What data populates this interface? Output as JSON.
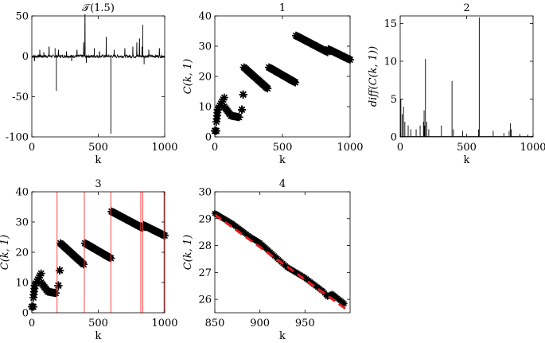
{
  "chart_data": [
    {
      "type": "line",
      "title": "𝒯(1.5)",
      "xlabel": "k",
      "ylabel": "",
      "xlim": [
        0,
        1000
      ],
      "ylim": [
        -100,
        50
      ],
      "xticks": [
        0,
        500,
        1000
      ],
      "yticks": [
        -100,
        -50,
        0,
        50
      ],
      "series": [
        {
          "baseline": 0,
          "noise_amplitude": 2,
          "spikes": [
            {
              "x": 20,
              "y": -6
            },
            {
              "x": 60,
              "y": 8
            },
            {
              "x": 90,
              "y": 5
            },
            {
              "x": 130,
              "y": 12
            },
            {
              "x": 175,
              "y": 10
            },
            {
              "x": 185,
              "y": -43
            },
            {
              "x": 200,
              "y": 8
            },
            {
              "x": 260,
              "y": 6
            },
            {
              "x": 300,
              "y": -6
            },
            {
              "x": 340,
              "y": 8
            },
            {
              "x": 390,
              "y": 17
            },
            {
              "x": 400,
              "y": 52
            },
            {
              "x": 410,
              "y": -8
            },
            {
              "x": 470,
              "y": 10
            },
            {
              "x": 510,
              "y": 6
            },
            {
              "x": 560,
              "y": 24
            },
            {
              "x": 595,
              "y": -96
            },
            {
              "x": 620,
              "y": 8
            },
            {
              "x": 700,
              "y": 10
            },
            {
              "x": 760,
              "y": 12
            },
            {
              "x": 790,
              "y": 17
            },
            {
              "x": 810,
              "y": 22
            },
            {
              "x": 830,
              "y": 12
            },
            {
              "x": 835,
              "y": 39
            },
            {
              "x": 845,
              "y": -10
            },
            {
              "x": 880,
              "y": 8
            },
            {
              "x": 960,
              "y": 10
            }
          ]
        }
      ]
    },
    {
      "type": "scatter",
      "title": "1",
      "xlabel": "k",
      "ylabel": "C(k, 1)",
      "xlim": [
        0,
        1000
      ],
      "ylim": [
        0,
        40
      ],
      "xticks": [
        0,
        500,
        1000
      ],
      "yticks": [
        0,
        10,
        20,
        30,
        40
      ],
      "marker": "*",
      "segments": [
        {
          "x": [
            0,
            12
          ],
          "y": [
            2,
            2
          ]
        },
        {
          "x": [
            12,
            22
          ],
          "y": [
            5,
            9
          ]
        },
        {
          "x": [
            22,
            70
          ],
          "y": [
            9,
            13
          ]
        },
        {
          "x": [
            70,
            120
          ],
          "y": [
            10,
            7
          ]
        },
        {
          "x": [
            120,
            180
          ],
          "y": [
            7,
            6.5
          ]
        },
        {
          "x": [
            200,
            200
          ],
          "y": [
            9,
            9
          ]
        },
        {
          "x": [
            210,
            210
          ],
          "y": [
            14,
            14
          ]
        },
        {
          "x": [
            215,
            390
          ],
          "y": [
            23,
            16
          ]
        },
        {
          "x": [
            400,
            595
          ],
          "y": [
            23,
            18
          ]
        },
        {
          "x": [
            600,
            835
          ],
          "y": [
            33.5,
            28
          ]
        },
        {
          "x": [
            840,
            1000
          ],
          "y": [
            29,
            25.5
          ]
        }
      ]
    },
    {
      "type": "line",
      "title": "2",
      "xlabel": "k",
      "ylabel": "diff(C(k, 1))",
      "xlim": [
        0,
        1000
      ],
      "ylim": [
        0,
        16
      ],
      "xticks": [
        0,
        500,
        1000
      ],
      "yticks": [
        0,
        5,
        10,
        15
      ],
      "spikes": [
        {
          "x": 5,
          "y": 5
        },
        {
          "x": 15,
          "y": 3
        },
        {
          "x": 25,
          "y": 4
        },
        {
          "x": 35,
          "y": 2
        },
        {
          "x": 60,
          "y": 1.5
        },
        {
          "x": 80,
          "y": 1
        },
        {
          "x": 120,
          "y": 1
        },
        {
          "x": 150,
          "y": 1.5
        },
        {
          "x": 175,
          "y": 2
        },
        {
          "x": 180,
          "y": 3.5
        },
        {
          "x": 185,
          "y": 1.5
        },
        {
          "x": 190,
          "y": 10.3
        },
        {
          "x": 200,
          "y": 2
        },
        {
          "x": 215,
          "y": 1
        },
        {
          "x": 310,
          "y": 1.5
        },
        {
          "x": 390,
          "y": 7.4
        },
        {
          "x": 400,
          "y": 1
        },
        {
          "x": 470,
          "y": 0.8
        },
        {
          "x": 590,
          "y": 1
        },
        {
          "x": 595,
          "y": 15.8
        },
        {
          "x": 700,
          "y": 0.8
        },
        {
          "x": 780,
          "y": 0.5
        },
        {
          "x": 820,
          "y": 0.8
        },
        {
          "x": 830,
          "y": 1.8
        },
        {
          "x": 835,
          "y": 1
        },
        {
          "x": 900,
          "y": 0.4
        },
        {
          "x": 960,
          "y": 0.3
        }
      ]
    },
    {
      "type": "scatter",
      "title": "3",
      "xlabel": "k",
      "ylabel": "C(k, 1)",
      "xlim": [
        0,
        1000
      ],
      "ylim": [
        0,
        40
      ],
      "xticks": [
        0,
        500,
        1000
      ],
      "yticks": [
        0,
        10,
        20,
        30,
        40
      ],
      "marker": "*",
      "vlines": [
        190,
        395,
        595,
        820,
        835,
        995
      ],
      "vline_color": "#ff4444"
    },
    {
      "type": "line",
      "title": "4",
      "xlabel": "k",
      "ylabel": "C(k, 1)",
      "xlim": [
        850,
        1000
      ],
      "ylim": [
        25.5,
        30
      ],
      "xticks": [
        850,
        900,
        950
      ],
      "yticks": [
        26,
        27,
        28,
        29,
        30
      ],
      "series": [
        {
          "style": "marker",
          "color": "#000000",
          "x": [
            850,
            870,
            890,
            900,
            910,
            930,
            950,
            970,
            975,
            980,
            995
          ],
          "y": [
            29.2,
            28.8,
            28.3,
            28.1,
            27.8,
            27.2,
            26.8,
            26.3,
            26.1,
            26.2,
            25.8
          ]
        },
        {
          "style": "dashed-fit",
          "color": "#e41a1c",
          "x": [
            850,
            995
          ],
          "y": [
            29.15,
            25.65
          ]
        }
      ]
    }
  ]
}
